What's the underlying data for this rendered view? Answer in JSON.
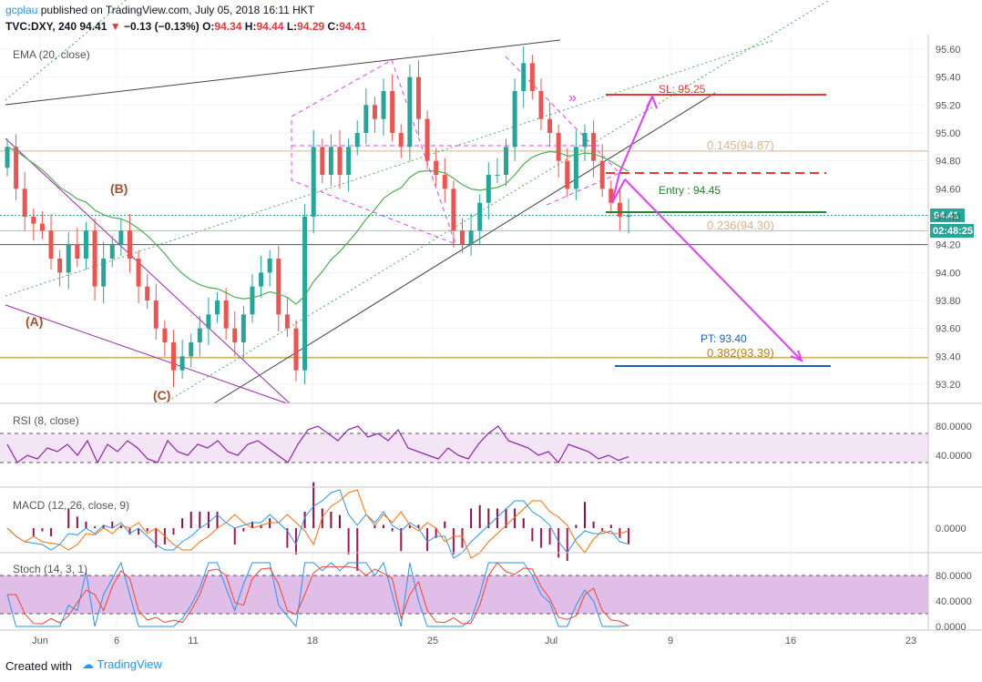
{
  "header": {
    "author": "gcplau",
    "published": "published on TradingView.com, July 05, 2018 16:11 HKT",
    "symbol": "TVC:DXY, 240",
    "last": "94.41",
    "change": "−0.13 (−0.13%)",
    "o_label": "O:",
    "o": "94.34",
    "h_label": "H:",
    "h": "94.44",
    "l_label": "L:",
    "l": "94.29",
    "c_label": "C:",
    "c": "94.41"
  },
  "footer": {
    "created": "Created with",
    "brand": "TradingView"
  },
  "colors": {
    "up": "#26a69a",
    "down": "#ef5350",
    "ema": "#4caf50",
    "rsi": "#8e24aa",
    "macd": "#2196f3",
    "signal": "#ff6d00",
    "stochK": "#2196f3",
    "stochD": "#f44336",
    "fill": "#e1bee7"
  },
  "chart_data": {
    "type": "candlestick",
    "main_pane": {
      "indicator_label": "EMA (20, close)",
      "yaxis_ticks": [
        "95.60",
        "95.40",
        "95.20",
        "95.00",
        "94.80",
        "94.60",
        "94.40",
        "94.20",
        "94.00",
        "93.80",
        "93.60",
        "93.40",
        "93.20"
      ],
      "ylim": [
        93.1,
        95.66
      ],
      "last_price_tag": "94.41",
      "countdown_tag": "02:48:25",
      "approx_closes": [
        94.9,
        94.6,
        94.4,
        94.35,
        94.3,
        94.1,
        94.0,
        94.2,
        94.1,
        94.3,
        93.9,
        94.1,
        94.2,
        94.3,
        94.1,
        93.9,
        93.8,
        93.6,
        93.5,
        93.3,
        93.4,
        93.5,
        93.6,
        93.7,
        93.8,
        93.6,
        93.5,
        93.7,
        93.9,
        94.0,
        94.1,
        93.7,
        93.6,
        93.3,
        94.4,
        94.9,
        94.7,
        94.9,
        94.7,
        94.9,
        95.0,
        95.2,
        95.1,
        95.3,
        95.0,
        94.9,
        95.4,
        95.1,
        94.8,
        94.7,
        94.6,
        94.3,
        94.2,
        94.3,
        94.5,
        94.7,
        94.7,
        94.9,
        95.3,
        95.5,
        95.3,
        95.1,
        95.0,
        94.8,
        94.6,
        94.9,
        95.0,
        94.8,
        94.6,
        94.5,
        94.4,
        94.41
      ],
      "annotations": {
        "wave_a": "(A)",
        "wave_b": "(B)",
        "wave_c": "(C)",
        "sl": "SL:  95.25",
        "entry": "Entry : 94.45",
        "pt": "PT:  93.40",
        "fib_145": "0.145(94.87)",
        "fib_236": "0.236(94.30)",
        "fib_382": "0.382(93.39)"
      }
    },
    "rsi_pane": {
      "label": "RSI (8, close)",
      "ticks": [
        "80.0000",
        "40.0000"
      ],
      "levels": [
        70,
        30
      ],
      "values": [
        55,
        30,
        40,
        35,
        50,
        45,
        55,
        40,
        60,
        30,
        55,
        45,
        60,
        50,
        35,
        30,
        60,
        45,
        40,
        55,
        50,
        60,
        45,
        40,
        55,
        60,
        50,
        40,
        30,
        55,
        75,
        80,
        70,
        60,
        75,
        80,
        65,
        70,
        60,
        75,
        50,
        45,
        40,
        35,
        50,
        40,
        35,
        55,
        70,
        80,
        60,
        55,
        50,
        40,
        45,
        30,
        55,
        50,
        45,
        35,
        40,
        33,
        38
      ]
    },
    "macd_pane": {
      "label": "MACD (12, 26, close, 9)",
      "ticks": [
        "0.0000"
      ]
    },
    "stoch_pane": {
      "label": "Stoch (14, 3, 1)",
      "ticks": [
        "80.0000",
        "40.0000",
        "0.0000"
      ],
      "levels": [
        80,
        20
      ]
    },
    "xaxis_ticks": [
      "Jun",
      "6",
      "11",
      "18",
      "25",
      "Jul",
      "9",
      "16",
      "23"
    ]
  }
}
